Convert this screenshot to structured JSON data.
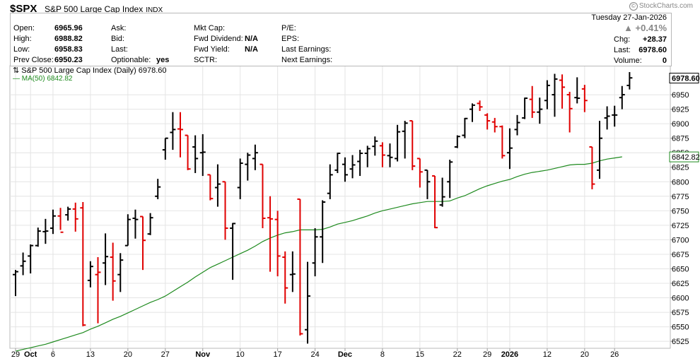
{
  "header": {
    "symbol": "$SPX",
    "name": "S&P 500 Large Cap Index",
    "exchange": "INDX",
    "credit": "StockCharts.com"
  },
  "quote": {
    "open_label": "Open:",
    "open": "6965.96",
    "high_label": "High:",
    "high": "6988.82",
    "low_label": "Low:",
    "low": "6958.83",
    "prev_close_label": "Prev Close:",
    "prev_close": "6950.23",
    "ask_label": "Ask:",
    "bid_label": "Bid:",
    "last_label": "Last:",
    "optionable_label": "Optionable:",
    "optionable": "yes",
    "mkt_cap_label": "Mkt Cap:",
    "fwd_div_label": "Fwd Dividend:",
    "fwd_div": "N/A",
    "fwd_yield_label": "Fwd Yield:",
    "fwd_yield": "N/A",
    "sctr_label": "SCTR:",
    "pe_label": "P/E:",
    "eps_label": "EPS:",
    "last_earn_label": "Last Earnings:",
    "next_earn_label": "Next Earnings:",
    "date": "Tuesday  27-Jan-2026",
    "pct_change": "+0.41%",
    "chg_label": "Chg:",
    "chg": "+28.37",
    "last_r_label": "Last:",
    "last": "6978.60",
    "volume_label": "Volume:",
    "volume": "0"
  },
  "colors": {
    "up": "#000000",
    "down": "#e00000",
    "ma": "#1e8a1e",
    "grid": "#e4e4e4",
    "frame": "#b8b8b8"
  },
  "chart_data": {
    "type": "ohlc_bar",
    "legend": {
      "main": "S&P 500 Large Cap Index (Daily) 6978.60",
      "ma": "MA(50) 6842.82"
    },
    "price_tag": "6978.60",
    "ma_tag": "6842.82",
    "ylim": [
      6513,
      7000
    ],
    "y_ticks": [
      6525,
      6550,
      6575,
      6600,
      6625,
      6650,
      6675,
      6700,
      6725,
      6750,
      6775,
      6800,
      6825,
      6850,
      6875,
      6900,
      6925,
      6950
    ],
    "x_labels": [
      {
        "label": "29",
        "i": 0
      },
      {
        "label": "Oct",
        "i": 2,
        "bold": true
      },
      {
        "label": "6",
        "i": 5
      },
      {
        "label": "13",
        "i": 10
      },
      {
        "label": "20",
        "i": 15
      },
      {
        "label": "27",
        "i": 20
      },
      {
        "label": "Nov",
        "i": 25,
        "bold": true
      },
      {
        "label": "10",
        "i": 30
      },
      {
        "label": "17",
        "i": 35
      },
      {
        "label": "24",
        "i": 40
      },
      {
        "label": "Dec",
        "i": 44,
        "bold": true
      },
      {
        "label": "8",
        "i": 49
      },
      {
        "label": "15",
        "i": 54
      },
      {
        "label": "22",
        "i": 59
      },
      {
        "label": "29",
        "i": 63
      },
      {
        "label": "2026",
        "i": 66,
        "bold": true
      },
      {
        "label": "12",
        "i": 71
      },
      {
        "label": "20",
        "i": 76
      },
      {
        "label": "26",
        "i": 80
      }
    ],
    "bars": [
      {
        "d": "Sep 29",
        "o": 6640,
        "h": 6648,
        "l": 6603,
        "c": 6645,
        "dir": "up"
      },
      {
        "d": "Sep 30",
        "o": 6655,
        "h": 6678,
        "l": 6639,
        "c": 6663,
        "dir": "up"
      },
      {
        "d": "Oct 1",
        "o": 6672,
        "h": 6692,
        "l": 6642,
        "c": 6690,
        "dir": "up"
      },
      {
        "d": "Oct 2",
        "o": 6690,
        "h": 6721,
        "l": 6688,
        "c": 6715,
        "dir": "up"
      },
      {
        "d": "Oct 3",
        "o": 6714,
        "h": 6736,
        "l": 6693,
        "c": 6715,
        "dir": "up"
      },
      {
        "d": "Oct 6",
        "o": 6720,
        "h": 6752,
        "l": 6710,
        "c": 6741,
        "dir": "up"
      },
      {
        "d": "Oct 7",
        "o": 6741,
        "h": 6755,
        "l": 6717,
        "c": 6713,
        "dir": "down"
      },
      {
        "d": "Oct 8",
        "o": 6743,
        "h": 6757,
        "l": 6733,
        "c": 6753,
        "dir": "up"
      },
      {
        "d": "Oct 9",
        "o": 6753,
        "h": 6764,
        "l": 6714,
        "c": 6736,
        "dir": "down"
      },
      {
        "d": "Oct 10",
        "o": 6755,
        "h": 6765,
        "l": 6551,
        "c": 6553,
        "dir": "down"
      },
      {
        "d": "Oct 13",
        "o": 6630,
        "h": 6663,
        "l": 6618,
        "c": 6654,
        "dir": "up"
      },
      {
        "d": "Oct 14",
        "o": 6640,
        "h": 6670,
        "l": 6556,
        "c": 6644,
        "dir": "down"
      },
      {
        "d": "Oct 15",
        "o": 6660,
        "h": 6711,
        "l": 6622,
        "c": 6671,
        "dir": "up"
      },
      {
        "d": "Oct 16",
        "o": 6670,
        "h": 6695,
        "l": 6595,
        "c": 6629,
        "dir": "down"
      },
      {
        "d": "Oct 17",
        "o": 6640,
        "h": 6677,
        "l": 6610,
        "c": 6665,
        "dir": "up"
      },
      {
        "d": "Oct 20",
        "o": 6690,
        "h": 6744,
        "l": 6690,
        "c": 6735,
        "dir": "up"
      },
      {
        "d": "Oct 21",
        "o": 6737,
        "h": 6752,
        "l": 6702,
        "c": 6735,
        "dir": "up"
      },
      {
        "d": "Oct 22",
        "o": 6740,
        "h": 6740,
        "l": 6648,
        "c": 6699,
        "dir": "down"
      },
      {
        "d": "Oct 23",
        "o": 6710,
        "h": 6746,
        "l": 6708,
        "c": 6738,
        "dir": "up"
      },
      {
        "d": "Oct 24",
        "o": 6775,
        "h": 6805,
        "l": 6770,
        "c": 6791,
        "dir": "up"
      },
      {
        "d": "Oct 27",
        "o": 6855,
        "h": 6875,
        "l": 6838,
        "c": 6875,
        "dir": "up"
      },
      {
        "d": "Oct 28",
        "o": 6885,
        "h": 6920,
        "l": 6855,
        "c": 6890,
        "dir": "up"
      },
      {
        "d": "Oct 29",
        "o": 6891,
        "h": 6920,
        "l": 6842,
        "c": 6890,
        "dir": "down"
      },
      {
        "d": "Oct 30",
        "o": 6880,
        "h": 6880,
        "l": 6820,
        "c": 6822,
        "dir": "down"
      },
      {
        "d": "Oct 31",
        "o": 6860,
        "h": 6880,
        "l": 6815,
        "c": 6840,
        "dir": "up"
      },
      {
        "d": "Nov 3",
        "o": 6850,
        "h": 6882,
        "l": 6810,
        "c": 6851,
        "dir": "up"
      },
      {
        "d": "Nov 4",
        "o": 6812,
        "h": 6812,
        "l": 6768,
        "c": 6771,
        "dir": "down"
      },
      {
        "d": "Nov 5",
        "o": 6790,
        "h": 6830,
        "l": 6757,
        "c": 6796,
        "dir": "up"
      },
      {
        "d": "Nov 6",
        "o": 6800,
        "h": 6800,
        "l": 6700,
        "c": 6720,
        "dir": "down"
      },
      {
        "d": "Nov 7",
        "o": 6720,
        "h": 6729,
        "l": 6631,
        "c": 6728,
        "dir": "up"
      },
      {
        "d": "Nov 10",
        "o": 6790,
        "h": 6840,
        "l": 6770,
        "c": 6832,
        "dir": "up"
      },
      {
        "d": "Nov 11",
        "o": 6830,
        "h": 6850,
        "l": 6802,
        "c": 6846,
        "dir": "up"
      },
      {
        "d": "Nov 12",
        "o": 6840,
        "h": 6864,
        "l": 6820,
        "c": 6850,
        "dir": "up"
      },
      {
        "d": "Nov 13",
        "o": 6830,
        "h": 6830,
        "l": 6720,
        "c": 6737,
        "dir": "down"
      },
      {
        "d": "Nov 14",
        "o": 6738,
        "h": 6775,
        "l": 6645,
        "c": 6736,
        "dir": "down"
      },
      {
        "d": "Nov 17",
        "o": 6735,
        "h": 6750,
        "l": 6637,
        "c": 6672,
        "dir": "down"
      },
      {
        "d": "Nov 18",
        "o": 6670,
        "h": 6680,
        "l": 6590,
        "c": 6617,
        "dir": "down"
      },
      {
        "d": "Nov 19",
        "o": 6640,
        "h": 6680,
        "l": 6610,
        "c": 6641,
        "dir": "up"
      },
      {
        "d": "Nov 20",
        "o": 6770,
        "h": 6770,
        "l": 6535,
        "c": 6538,
        "dir": "down"
      },
      {
        "d": "Nov 21",
        "o": 6545,
        "h": 6662,
        "l": 6521,
        "c": 6603,
        "dir": "up"
      },
      {
        "d": "Nov 24",
        "o": 6660,
        "h": 6720,
        "l": 6637,
        "c": 6705,
        "dir": "up"
      },
      {
        "d": "Nov 25",
        "o": 6705,
        "h": 6768,
        "l": 6660,
        "c": 6765,
        "dir": "up"
      },
      {
        "d": "Nov 26",
        "o": 6780,
        "h": 6830,
        "l": 6770,
        "c": 6812,
        "dir": "up"
      },
      {
        "d": "Nov 28",
        "o": 6820,
        "h": 6850,
        "l": 6815,
        "c": 6849,
        "dir": "up"
      },
      {
        "d": "Dec 1",
        "o": 6830,
        "h": 6842,
        "l": 6800,
        "c": 6812,
        "dir": "up"
      },
      {
        "d": "Dec 2",
        "o": 6822,
        "h": 6846,
        "l": 6806,
        "c": 6829,
        "dir": "up"
      },
      {
        "d": "Dec 3",
        "o": 6835,
        "h": 6855,
        "l": 6810,
        "c": 6849,
        "dir": "up"
      },
      {
        "d": "Dec 4",
        "o": 6849,
        "h": 6862,
        "l": 6825,
        "c": 6857,
        "dir": "up"
      },
      {
        "d": "Dec 5",
        "o": 6861,
        "h": 6878,
        "l": 6845,
        "c": 6870,
        "dir": "up"
      },
      {
        "d": "Dec 8",
        "o": 6862,
        "h": 6868,
        "l": 6825,
        "c": 6846,
        "dir": "down"
      },
      {
        "d": "Dec 9",
        "o": 6845,
        "h": 6866,
        "l": 6825,
        "c": 6842,
        "dir": "up"
      },
      {
        "d": "Dec 10",
        "o": 6840,
        "h": 6898,
        "l": 6835,
        "c": 6886,
        "dir": "up"
      },
      {
        "d": "Dec 11",
        "o": 6887,
        "h": 6905,
        "l": 6840,
        "c": 6901,
        "dir": "up"
      },
      {
        "d": "Dec 12",
        "o": 6905,
        "h": 6905,
        "l": 6820,
        "c": 6827,
        "dir": "down"
      },
      {
        "d": "Dec 15",
        "o": 6840,
        "h": 6840,
        "l": 6790,
        "c": 6817,
        "dir": "down"
      },
      {
        "d": "Dec 16",
        "o": 6820,
        "h": 6820,
        "l": 6770,
        "c": 6800,
        "dir": "up"
      },
      {
        "d": "Dec 17",
        "o": 6810,
        "h": 6810,
        "l": 6720,
        "c": 6721,
        "dir": "down"
      },
      {
        "d": "Dec 18",
        "o": 6760,
        "h": 6807,
        "l": 6757,
        "c": 6774,
        "dir": "up"
      },
      {
        "d": "Dec 19",
        "o": 6800,
        "h": 6838,
        "l": 6772,
        "c": 6834,
        "dir": "up"
      },
      {
        "d": "Dec 22",
        "o": 6860,
        "h": 6880,
        "l": 6858,
        "c": 6878,
        "dir": "up"
      },
      {
        "d": "Dec 23",
        "o": 6880,
        "h": 6910,
        "l": 6875,
        "c": 6909,
        "dir": "up"
      },
      {
        "d": "Dec 24",
        "o": 6925,
        "h": 6935,
        "l": 6903,
        "c": 6932,
        "dir": "up"
      },
      {
        "d": "Dec 26",
        "o": 6935,
        "h": 6940,
        "l": 6922,
        "c": 6929,
        "dir": "down"
      },
      {
        "d": "Dec 29",
        "o": 6915,
        "h": 6918,
        "l": 6890,
        "c": 6905,
        "dir": "down"
      },
      {
        "d": "Dec 30",
        "o": 6903,
        "h": 6910,
        "l": 6885,
        "c": 6895,
        "dir": "down"
      },
      {
        "d": "Dec 31",
        "o": 6895,
        "h": 6897,
        "l": 6840,
        "c": 6845,
        "dir": "down"
      },
      {
        "d": "Jan 2",
        "o": 6850,
        "h": 6892,
        "l": 6822,
        "c": 6858,
        "dir": "up"
      },
      {
        "d": "Jan 5",
        "o": 6890,
        "h": 6915,
        "l": 6880,
        "c": 6902,
        "dir": "up"
      },
      {
        "d": "Jan 6",
        "o": 6910,
        "h": 6945,
        "l": 6908,
        "c": 6944,
        "dir": "up"
      },
      {
        "d": "Jan 7",
        "o": 6942,
        "h": 6965,
        "l": 6910,
        "c": 6920,
        "dir": "down"
      },
      {
        "d": "Jan 8",
        "o": 6920,
        "h": 6945,
        "l": 6900,
        "c": 6925,
        "dir": "up"
      },
      {
        "d": "Jan 9",
        "o": 6940,
        "h": 6975,
        "l": 6925,
        "c": 6966,
        "dir": "up"
      },
      {
        "d": "Jan 12",
        "o": 6950,
        "h": 6986,
        "l": 6912,
        "c": 6977,
        "dir": "up"
      },
      {
        "d": "Jan 13",
        "o": 6975,
        "h": 6985,
        "l": 6926,
        "c": 6963,
        "dir": "down"
      },
      {
        "d": "Jan 14",
        "o": 6950,
        "h": 6955,
        "l": 6885,
        "c": 6926,
        "dir": "down"
      },
      {
        "d": "Jan 15",
        "o": 6945,
        "h": 6980,
        "l": 6935,
        "c": 6944,
        "dir": "up"
      },
      {
        "d": "Jan 16",
        "o": 6960,
        "h": 6967,
        "l": 6920,
        "c": 6940,
        "dir": "down"
      },
      {
        "d": "Jan 20",
        "o": 6860,
        "h": 6860,
        "l": 6787,
        "c": 6796,
        "dir": "down"
      },
      {
        "d": "Jan 21",
        "o": 6820,
        "h": 6905,
        "l": 6805,
        "c": 6875,
        "dir": "up"
      },
      {
        "d": "Jan 22",
        "o": 6910,
        "h": 6930,
        "l": 6890,
        "c": 6913,
        "dir": "up"
      },
      {
        "d": "Jan 23",
        "o": 6915,
        "h": 6931,
        "l": 6895,
        "c": 6915,
        "dir": "up"
      },
      {
        "d": "Jan 26",
        "o": 6945,
        "h": 6965,
        "l": 6925,
        "c": 6950,
        "dir": "up"
      },
      {
        "d": "Jan 27",
        "o": 6966,
        "h": 6989,
        "l": 6959,
        "c": 6979,
        "dir": "up"
      }
    ],
    "ma50": [
      6508,
      6511,
      6514,
      6517,
      6520,
      6524,
      6528,
      6532,
      6536,
      6540,
      6546,
      6551,
      6557,
      6563,
      6568,
      6574,
      6580,
      6586,
      6592,
      6597,
      6603,
      6611,
      6619,
      6627,
      6636,
      6644,
      6652,
      6658,
      6664,
      6670,
      6676,
      6682,
      6689,
      6697,
      6703,
      6708,
      6712,
      6714,
      6717,
      6717,
      6717,
      6718,
      6722,
      6727,
      6730,
      6733,
      6737,
      6741,
      6746,
      6750,
      6753,
      6756,
      6759,
      6762,
      6764,
      6766,
      6766,
      6766,
      6767,
      6772,
      6776,
      6782,
      6788,
      6793,
      6797,
      6801,
      6804,
      6809,
      6813,
      6816,
      6818,
      6820,
      6823,
      6826,
      6829,
      6830,
      6830,
      6832,
      6836,
      6839,
      6841,
      6843
    ]
  }
}
